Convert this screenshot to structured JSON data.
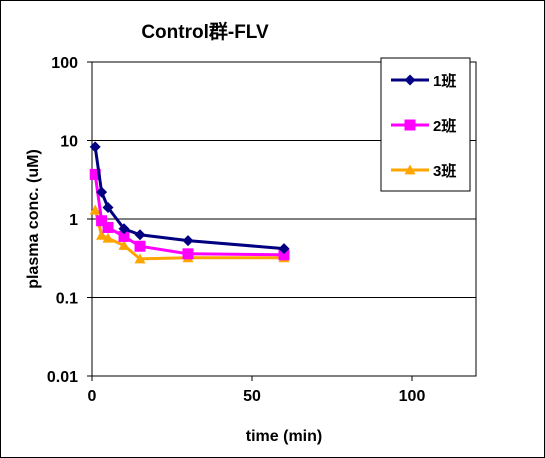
{
  "chart_data": {
    "type": "line",
    "title": "Control群-FLV",
    "xlabel": "time (min)",
    "ylabel": "plasma conc. (uM)",
    "xlim": [
      0,
      120
    ],
    "ylim": [
      0.01,
      100
    ],
    "yscale": "log",
    "xticks": [
      "0",
      "50",
      "100"
    ],
    "yticks": [
      "0.01",
      "0.1",
      "1",
      "10",
      "100"
    ],
    "grid": "horizontal major gridlines",
    "legend": "top-right",
    "series": [
      {
        "name": "1班",
        "color": "#000080",
        "marker": "diamond",
        "points": [
          [
            1,
            8.3
          ],
          [
            3,
            2.2
          ],
          [
            5,
            1.4
          ],
          [
            10,
            0.75
          ],
          [
            15,
            0.63
          ],
          [
            30,
            0.53
          ],
          [
            60,
            0.42
          ]
        ]
      },
      {
        "name": "2班",
        "color": "#FF00FF",
        "marker": "square",
        "points": [
          [
            1,
            3.7
          ],
          [
            3,
            0.95
          ],
          [
            5,
            0.78
          ],
          [
            10,
            0.6
          ],
          [
            15,
            0.45
          ],
          [
            30,
            0.36
          ],
          [
            60,
            0.35
          ]
        ]
      },
      {
        "name": "3班",
        "color": "#FFA500",
        "marker": "triangle",
        "points": [
          [
            1,
            1.3
          ],
          [
            3,
            0.62
          ],
          [
            5,
            0.57
          ],
          [
            10,
            0.46
          ],
          [
            15,
            0.31
          ],
          [
            30,
            0.32
          ],
          [
            60,
            0.32
          ]
        ]
      }
    ]
  }
}
